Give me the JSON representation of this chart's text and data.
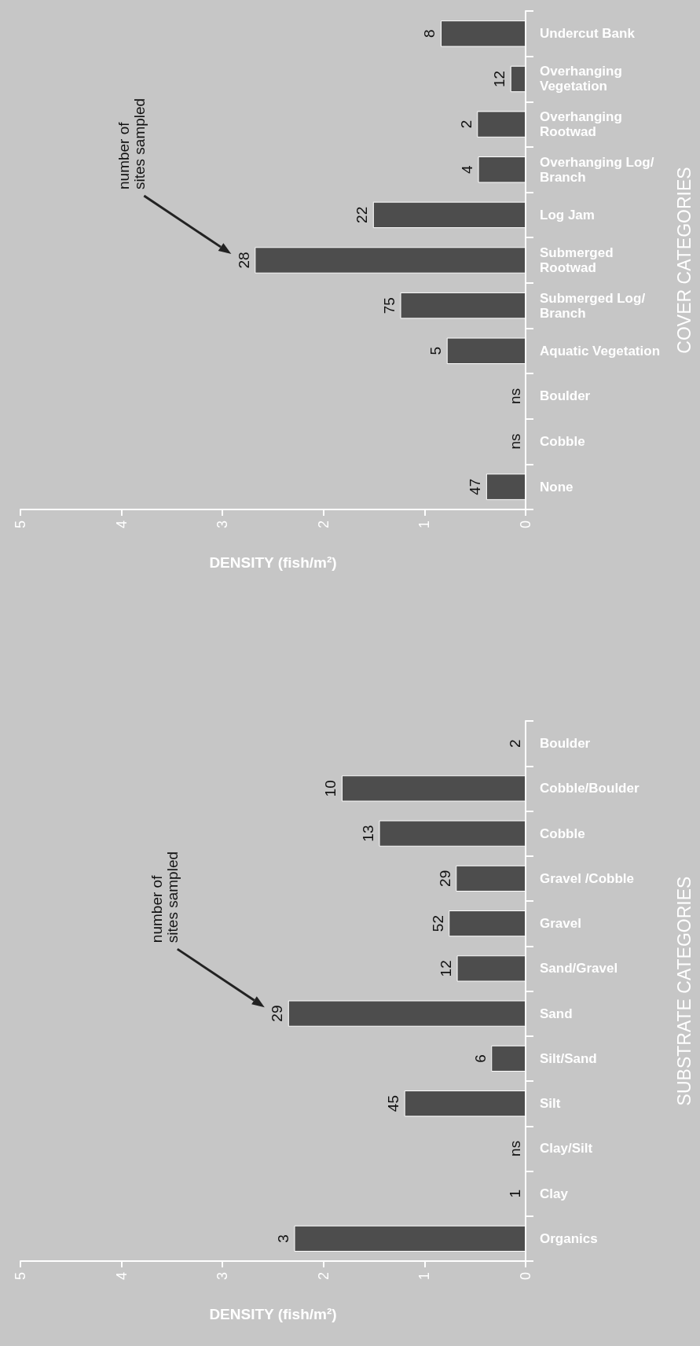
{
  "chart_data": [
    {
      "type": "bar",
      "orientation": "horizontal",
      "ylabel": "COVER CATEGORIES",
      "xlabel": "DENSITY (fish/m²)",
      "categories": [
        "Undercut Bank",
        "Overhanging Vegetation",
        "Overhanging Rootwad",
        "Overhanging Log/Branch",
        "Log Jam",
        "Submerged Rootwad",
        "Submerged Log/Branch",
        "Aquatic Vegetation",
        "Boulder",
        "Cobble",
        "None"
      ],
      "values": [
        0.84,
        0.15,
        0.48,
        0.47,
        1.51,
        2.68,
        1.24,
        0.78,
        null,
        null,
        0.39
      ],
      "color": "#4d4d4d",
      "xlim": [
        5,
        0
      ],
      "xticks": [
        0,
        1,
        2,
        3,
        4,
        5
      ],
      "annotations": [
        "ns",
        "ns",
        "number of sites sampled",
        {
          "text": "8",
          "x": 0.84,
          "y": "Undercut Bank"
        },
        {
          "text": "12",
          "x": 0.15,
          "y": "Overhanging Vegetation"
        },
        {
          "text": "2",
          "x": 0.48,
          "y": "Overhanging Rootwad"
        },
        {
          "text": "4",
          "x": 0.47,
          "y": "Overhanging Log/Branch"
        },
        {
          "text": "22",
          "x": 1.51,
          "y": "Log Jam"
        },
        {
          "text": "28",
          "x": 2.68,
          "y": "Submerged Rootwad"
        },
        {
          "text": "75",
          "x": 1.24,
          "y": "Submerged Log/Branch"
        },
        {
          "text": "5",
          "x": 0.78,
          "y": "Aquatic Vegetation"
        },
        {
          "text": "47",
          "x": 0.39,
          "y": "None"
        }
      ]
    },
    {
      "type": "bar",
      "orientation": "horizontal",
      "ylabel": "SUBSTRATE CATEGORIES",
      "xlabel": "DENSITY (fish/m²)",
      "categories": [
        "Boulder",
        "Cobble/Boulder",
        "Cobble",
        "Gravel /Cobble",
        "Gravel",
        "Sand/Gravel",
        "Sand",
        "Silt/Sand",
        "Silt",
        "Clay/Silt",
        "Clay",
        "Organics"
      ],
      "values": [
        0,
        1.82,
        1.45,
        0.69,
        0.76,
        0.68,
        2.35,
        0.34,
        1.2,
        null,
        0,
        2.29
      ],
      "color": "#4d4d4d",
      "xlim": [
        5,
        0
      ],
      "xticks": [
        0,
        1,
        2,
        3,
        4,
        5
      ],
      "annotations": [
        "ns",
        "number of sites sampled",
        {
          "text": "2",
          "x": 0,
          "y": "Boulder"
        },
        {
          "text": "10",
          "x": 1.82,
          "y": "Cobble/Boulder"
        },
        {
          "text": "13",
          "x": 1.45,
          "y": "Cobble"
        },
        {
          "text": "29",
          "x": 0.69,
          "y": "Gravel /Cobble"
        },
        {
          "text": "52",
          "x": 0.76,
          "y": "Gravel"
        },
        {
          "text": "12",
          "x": 0.68,
          "y": "Sand/Gravel"
        },
        {
          "text": "29",
          "x": 2.35,
          "y": "Sand"
        },
        {
          "text": "6",
          "x": 0.34,
          "y": "Silt/Sand"
        },
        {
          "text": "45",
          "x": 1.2,
          "y": "Silt"
        },
        {
          "text": "1",
          "x": 0,
          "y": "Clay"
        },
        {
          "text": "3",
          "x": 2.29,
          "y": "Organics"
        }
      ]
    }
  ]
}
